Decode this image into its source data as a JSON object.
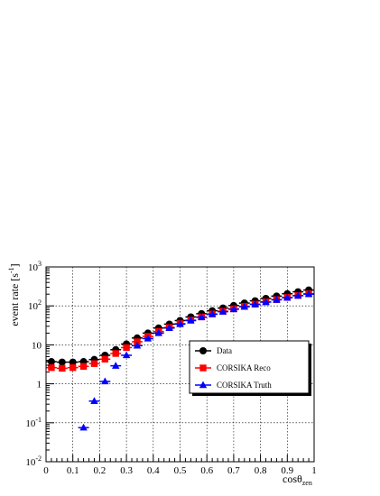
{
  "chart_data": {
    "type": "scatter",
    "title": "",
    "xlabel_main": "cosθ",
    "xlabel_sub": "zen",
    "ylabel": "event rate [s",
    "ylabel_sup": "-1",
    "ylabel_end": "]",
    "xlim": [
      0,
      1
    ],
    "ylim": [
      0.01,
      1000
    ],
    "yscale": "log",
    "grid": true,
    "legend_position": "right-middle",
    "x_ticks": [
      {
        "value": 0,
        "label": "0"
      },
      {
        "value": 0.1,
        "label": "0.1"
      },
      {
        "value": 0.2,
        "label": "0.2"
      },
      {
        "value": 0.3,
        "label": "0.3"
      },
      {
        "value": 0.4,
        "label": "0.4"
      },
      {
        "value": 0.5,
        "label": "0.5"
      },
      {
        "value": 0.6,
        "label": "0.6"
      },
      {
        "value": 0.7,
        "label": "0.7"
      },
      {
        "value": 0.8,
        "label": "0.8"
      },
      {
        "value": 0.9,
        "label": "0.9"
      },
      {
        "value": 1,
        "label": "1"
      }
    ],
    "y_ticks": [
      {
        "value": 0.01,
        "base": "10",
        "exp": "-2"
      },
      {
        "value": 0.1,
        "base": "10",
        "exp": "-1"
      },
      {
        "value": 1,
        "base": "1",
        "exp": ""
      },
      {
        "value": 10,
        "base": "10",
        "exp": ""
      },
      {
        "value": 100,
        "base": "10",
        "exp": "2"
      },
      {
        "value": 1000,
        "base": "10",
        "exp": "3"
      }
    ],
    "series": [
      {
        "name": "Data",
        "color": "#000000",
        "marker": "circle",
        "x": [
          0.02,
          0.06,
          0.1,
          0.14,
          0.18,
          0.22,
          0.26,
          0.3,
          0.34,
          0.38,
          0.42,
          0.46,
          0.5,
          0.54,
          0.58,
          0.62,
          0.66,
          0.7,
          0.74,
          0.78,
          0.82,
          0.86,
          0.9,
          0.94,
          0.98
        ],
        "y": [
          3.7,
          3.6,
          3.6,
          3.7,
          4.2,
          5.4,
          7.5,
          10.5,
          15,
          20,
          27,
          34,
          42,
          52,
          63,
          75,
          88,
          102,
          118,
          135,
          155,
          178,
          205,
          230,
          255
        ]
      },
      {
        "name": "CORSIKA Reco",
        "color": "#ff0000",
        "marker": "square",
        "x": [
          0.02,
          0.06,
          0.1,
          0.14,
          0.18,
          0.22,
          0.26,
          0.3,
          0.34,
          0.38,
          0.42,
          0.46,
          0.5,
          0.54,
          0.58,
          0.62,
          0.66,
          0.7,
          0.74,
          0.78,
          0.82,
          0.86,
          0.9,
          0.94,
          0.98
        ],
        "y": [
          2.6,
          2.5,
          2.6,
          2.8,
          3.3,
          4.3,
          6.0,
          8.5,
          12,
          16.5,
          22,
          28,
          35,
          43,
          52,
          62,
          73,
          84,
          97,
          111,
          127,
          145,
          165,
          185,
          205
        ]
      },
      {
        "name": "CORSIKA Truth",
        "color": "#0000ff",
        "marker": "triangle",
        "x": [
          0.14,
          0.18,
          0.22,
          0.26,
          0.3,
          0.34,
          0.38,
          0.42,
          0.46,
          0.5,
          0.54,
          0.58,
          0.62,
          0.66,
          0.7,
          0.74,
          0.78,
          0.82,
          0.86,
          0.9,
          0.94,
          0.98
        ],
        "y": [
          0.075,
          0.36,
          1.15,
          2.9,
          5.4,
          9.5,
          14.5,
          20,
          27,
          34,
          42,
          51,
          61,
          71,
          82,
          95,
          109,
          125,
          143,
          162,
          182,
          200
        ]
      }
    ]
  }
}
